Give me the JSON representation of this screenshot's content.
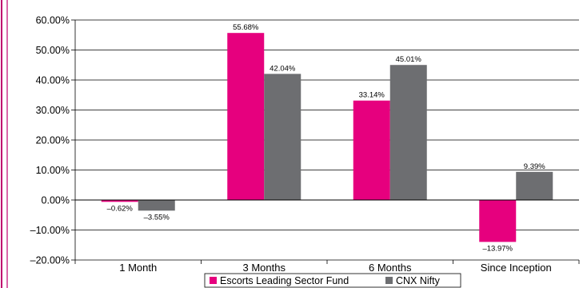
{
  "chart_data": {
    "type": "bar",
    "categories": [
      "1 Month",
      "3 Months",
      "6 Months",
      "Since Inception"
    ],
    "series": [
      {
        "name": "Escorts Leading Sector Fund",
        "values": [
          -0.62,
          55.68,
          33.14,
          -13.97
        ],
        "labels": [
          "–0.62%",
          "55.68%",
          "33.14%",
          "–13.97%"
        ],
        "color": "#e6007e"
      },
      {
        "name": "CNX Nifty",
        "values": [
          -3.55,
          42.04,
          45.01,
          9.39
        ],
        "labels": [
          "–3.55%",
          "42.04%",
          "45.01%",
          "9.39%"
        ],
        "color": "#6d6e71"
      }
    ],
    "ylim": [
      -20,
      60
    ],
    "yticks": [
      -20,
      -10,
      0,
      10,
      20,
      30,
      40,
      50,
      60
    ],
    "ytick_labels": [
      "–20.00%",
      "–10.00%",
      "0.00%",
      "10.00%",
      "20.00%",
      "30.00%",
      "40.00%",
      "50.00%",
      "60.00%"
    ],
    "grid": true,
    "legend_position": "bottom",
    "frame_color": "#c0006e"
  }
}
